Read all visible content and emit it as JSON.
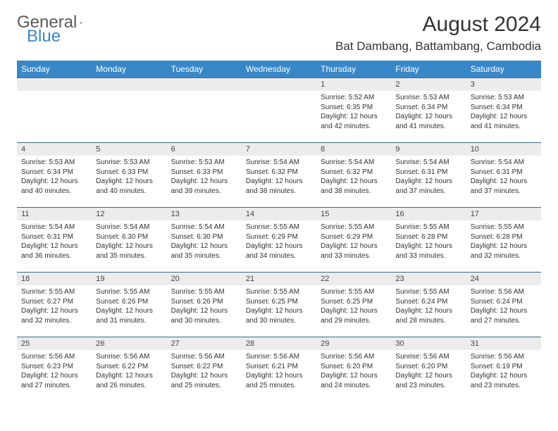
{
  "logo": {
    "general": "General",
    "blue": "Blue"
  },
  "title": "August 2024",
  "location": "Bat Dambang, Battambang, Cambodia",
  "colors": {
    "header_bg": "#3a87c7",
    "header_text": "#ffffff",
    "daynum_bg": "#ececec",
    "row_border": "#3a6a8a",
    "logo_gray": "#5a5a5a",
    "logo_blue": "#3a87c7"
  },
  "weekdays": [
    "Sunday",
    "Monday",
    "Tuesday",
    "Wednesday",
    "Thursday",
    "Friday",
    "Saturday"
  ],
  "weeks": [
    [
      null,
      null,
      null,
      null,
      {
        "d": "1",
        "sr": "5:52 AM",
        "ss": "6:35 PM",
        "dl": "12 hours and 42 minutes."
      },
      {
        "d": "2",
        "sr": "5:53 AM",
        "ss": "6:34 PM",
        "dl": "12 hours and 41 minutes."
      },
      {
        "d": "3",
        "sr": "5:53 AM",
        "ss": "6:34 PM",
        "dl": "12 hours and 41 minutes."
      }
    ],
    [
      {
        "d": "4",
        "sr": "5:53 AM",
        "ss": "6:34 PM",
        "dl": "12 hours and 40 minutes."
      },
      {
        "d": "5",
        "sr": "5:53 AM",
        "ss": "6:33 PM",
        "dl": "12 hours and 40 minutes."
      },
      {
        "d": "6",
        "sr": "5:53 AM",
        "ss": "6:33 PM",
        "dl": "12 hours and 39 minutes."
      },
      {
        "d": "7",
        "sr": "5:54 AM",
        "ss": "6:32 PM",
        "dl": "12 hours and 38 minutes."
      },
      {
        "d": "8",
        "sr": "5:54 AM",
        "ss": "6:32 PM",
        "dl": "12 hours and 38 minutes."
      },
      {
        "d": "9",
        "sr": "5:54 AM",
        "ss": "6:31 PM",
        "dl": "12 hours and 37 minutes."
      },
      {
        "d": "10",
        "sr": "5:54 AM",
        "ss": "6:31 PM",
        "dl": "12 hours and 37 minutes."
      }
    ],
    [
      {
        "d": "11",
        "sr": "5:54 AM",
        "ss": "6:31 PM",
        "dl": "12 hours and 36 minutes."
      },
      {
        "d": "12",
        "sr": "5:54 AM",
        "ss": "6:30 PM",
        "dl": "12 hours and 35 minutes."
      },
      {
        "d": "13",
        "sr": "5:54 AM",
        "ss": "6:30 PM",
        "dl": "12 hours and 35 minutes."
      },
      {
        "d": "14",
        "sr": "5:55 AM",
        "ss": "6:29 PM",
        "dl": "12 hours and 34 minutes."
      },
      {
        "d": "15",
        "sr": "5:55 AM",
        "ss": "6:29 PM",
        "dl": "12 hours and 33 minutes."
      },
      {
        "d": "16",
        "sr": "5:55 AM",
        "ss": "6:28 PM",
        "dl": "12 hours and 33 minutes."
      },
      {
        "d": "17",
        "sr": "5:55 AM",
        "ss": "6:28 PM",
        "dl": "12 hours and 32 minutes."
      }
    ],
    [
      {
        "d": "18",
        "sr": "5:55 AM",
        "ss": "6:27 PM",
        "dl": "12 hours and 32 minutes."
      },
      {
        "d": "19",
        "sr": "5:55 AM",
        "ss": "6:26 PM",
        "dl": "12 hours and 31 minutes."
      },
      {
        "d": "20",
        "sr": "5:55 AM",
        "ss": "6:26 PM",
        "dl": "12 hours and 30 minutes."
      },
      {
        "d": "21",
        "sr": "5:55 AM",
        "ss": "6:25 PM",
        "dl": "12 hours and 30 minutes."
      },
      {
        "d": "22",
        "sr": "5:55 AM",
        "ss": "6:25 PM",
        "dl": "12 hours and 29 minutes."
      },
      {
        "d": "23",
        "sr": "5:55 AM",
        "ss": "6:24 PM",
        "dl": "12 hours and 28 minutes."
      },
      {
        "d": "24",
        "sr": "5:56 AM",
        "ss": "6:24 PM",
        "dl": "12 hours and 27 minutes."
      }
    ],
    [
      {
        "d": "25",
        "sr": "5:56 AM",
        "ss": "6:23 PM",
        "dl": "12 hours and 27 minutes."
      },
      {
        "d": "26",
        "sr": "5:56 AM",
        "ss": "6:22 PM",
        "dl": "12 hours and 26 minutes."
      },
      {
        "d": "27",
        "sr": "5:56 AM",
        "ss": "6:22 PM",
        "dl": "12 hours and 25 minutes."
      },
      {
        "d": "28",
        "sr": "5:56 AM",
        "ss": "6:21 PM",
        "dl": "12 hours and 25 minutes."
      },
      {
        "d": "29",
        "sr": "5:56 AM",
        "ss": "6:20 PM",
        "dl": "12 hours and 24 minutes."
      },
      {
        "d": "30",
        "sr": "5:56 AM",
        "ss": "6:20 PM",
        "dl": "12 hours and 23 minutes."
      },
      {
        "d": "31",
        "sr": "5:56 AM",
        "ss": "6:19 PM",
        "dl": "12 hours and 23 minutes."
      }
    ]
  ],
  "labels": {
    "sunrise": "Sunrise: ",
    "sunset": "Sunset: ",
    "daylight": "Daylight: "
  }
}
